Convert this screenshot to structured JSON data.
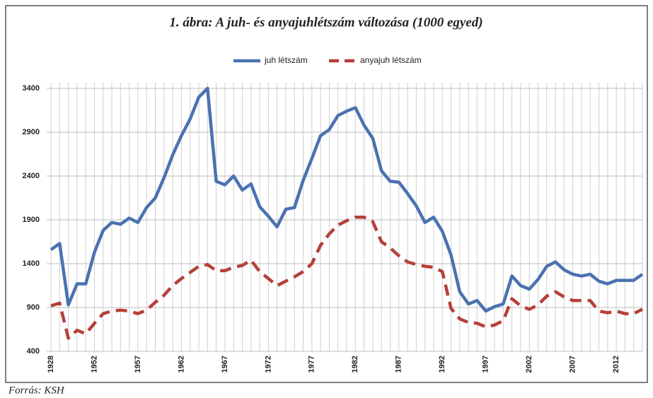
{
  "chart_data": {
    "type": "line",
    "title": "1. ábra: A juh- és anyajuhlétszám változása (1000 egyed)",
    "source": "Forrás: KSH",
    "legend": "top",
    "grid": true,
    "categories": [
      "1928",
      null,
      null,
      null,
      null,
      "1952",
      null,
      null,
      null,
      null,
      "1957",
      null,
      null,
      null,
      null,
      "1962",
      null,
      null,
      null,
      null,
      "1967",
      null,
      null,
      null,
      null,
      "1972",
      null,
      null,
      null,
      null,
      "1977",
      null,
      null,
      null,
      null,
      "1982",
      null,
      null,
      null,
      null,
      "1987",
      null,
      null,
      null,
      null,
      "1992",
      null,
      null,
      null,
      null,
      "1997",
      null,
      null,
      null,
      null,
      "2002",
      null,
      null,
      null,
      null,
      "2007",
      null,
      null,
      null,
      null,
      "2012",
      null,
      null,
      null
    ],
    "ylim": [
      400,
      3400
    ],
    "yticks": [
      400,
      900,
      1400,
      1900,
      2400,
      2900,
      3400
    ],
    "series": [
      {
        "name": "juh létszám",
        "color": "#4a72b0",
        "dashed": false,
        "values": [
          1560,
          1630,
          930,
          1170,
          1170,
          1530,
          1780,
          1870,
          1850,
          1920,
          1870,
          2040,
          2150,
          2380,
          2640,
          2860,
          3050,
          3300,
          3400,
          2340,
          2300,
          2400,
          2240,
          2310,
          2050,
          1940,
          1820,
          2020,
          2040,
          2350,
          2600,
          2860,
          2930,
          3090,
          3140,
          3180,
          2980,
          2830,
          2460,
          2340,
          2330,
          2200,
          2060,
          1870,
          1930,
          1770,
          1500,
          1080,
          940,
          980,
          860,
          910,
          940,
          1260,
          1150,
          1110,
          1220,
          1370,
          1420,
          1330,
          1280,
          1260,
          1280,
          1200,
          1170,
          1210,
          1210,
          1210,
          1280
        ]
      },
      {
        "name": "anyajuh létszám",
        "color": "#b5403a",
        "dashed": true,
        "values": [
          920,
          950,
          550,
          640,
          600,
          720,
          830,
          860,
          870,
          860,
          830,
          870,
          960,
          1040,
          1150,
          1230,
          1300,
          1370,
          1390,
          1320,
          1320,
          1360,
          1380,
          1440,
          1310,
          1230,
          1150,
          1200,
          1250,
          1310,
          1400,
          1610,
          1740,
          1840,
          1890,
          1930,
          1930,
          1880,
          1650,
          1580,
          1490,
          1420,
          1390,
          1370,
          1360,
          1310,
          890,
          770,
          730,
          720,
          680,
          700,
          750,
          1000,
          920,
          880,
          930,
          1030,
          1080,
          1020,
          980,
          980,
          980,
          860,
          840,
          860,
          830,
          830,
          880
        ]
      }
    ]
  }
}
